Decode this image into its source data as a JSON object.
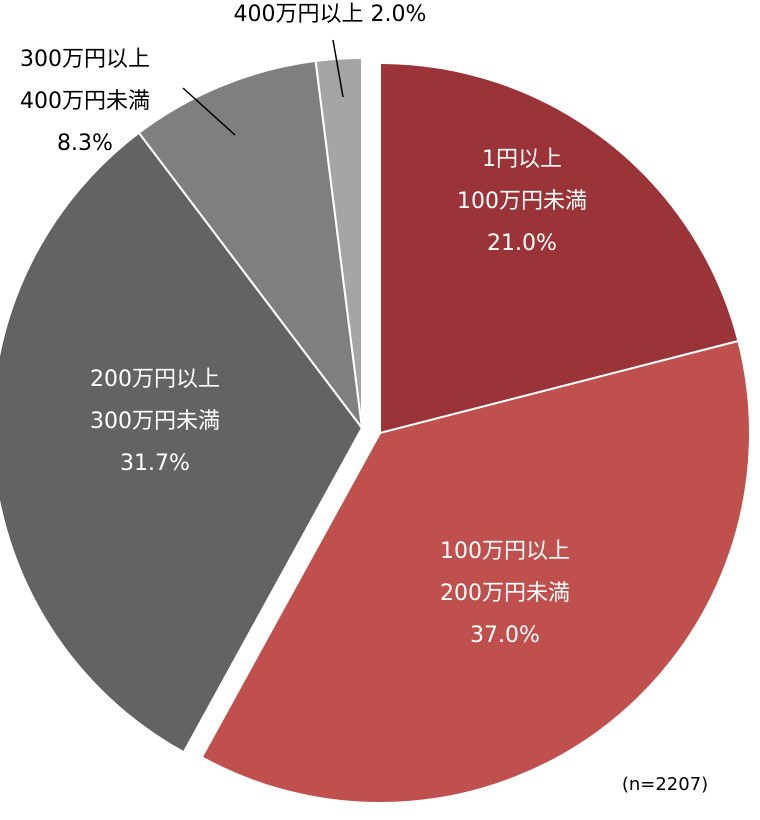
{
  "chart_data": {
    "type": "pie",
    "categories": [
      [
        "1円以上",
        "100万円未満"
      ],
      [
        "100万円以上",
        "200万円未満"
      ],
      [
        "200万円以上",
        "300万円未満"
      ],
      [
        "300万円以上",
        "400万円未満"
      ],
      [
        "400万円以上"
      ]
    ],
    "values": [
      21.0,
      37.0,
      31.7,
      8.3,
      2.0
    ],
    "value_labels": [
      "21.0%",
      "37.0%",
      "31.7%",
      "8.3%",
      "2.0%"
    ],
    "colors": [
      "#9b3438",
      "#c0504d",
      "#636363",
      "#7f7f7f",
      "#a5a5a5"
    ],
    "annotation": "(n=2207)"
  }
}
